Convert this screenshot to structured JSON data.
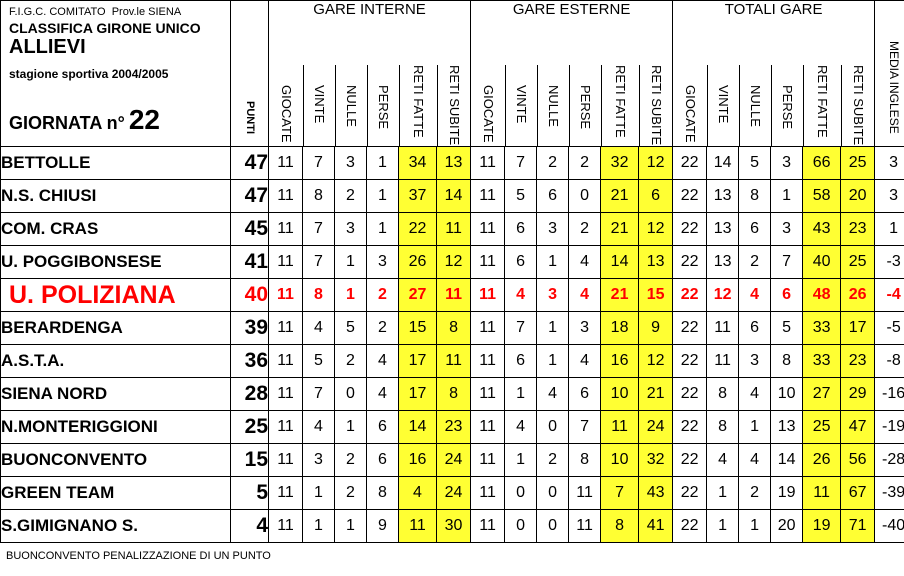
{
  "header": {
    "org": "F.I.G.C. COMITATO",
    "province": "Prov.le SIENA",
    "classifica": "CLASSIFICA GIRONE UNICO",
    "category": "ALLIEVI",
    "season": "stagione sportiva 2004/2005",
    "giornata_label": "GIORNATA n°",
    "giornata_number": "22"
  },
  "columns": {
    "punti": "PUNTI",
    "gare_interne": "GARE INTERNE",
    "gare_esterne": "GARE ESTERNE",
    "totali_gare": "TOTALI GARE",
    "media_inglese": "MEDIA INGLESE",
    "sub": [
      "GIOCATE",
      "VINTE",
      "NULLE",
      "PERSE",
      "RETI FATTE",
      "RETI SUBITE"
    ]
  },
  "teams": [
    {
      "name": "BETTOLLE",
      "punti": "47",
      "interne": [
        "11",
        "7",
        "3",
        "1",
        "34",
        "13"
      ],
      "esterne": [
        "11",
        "7",
        "2",
        "2",
        "32",
        "12"
      ],
      "totali": [
        "22",
        "14",
        "5",
        "3",
        "66",
        "25"
      ],
      "media": "3"
    },
    {
      "name": "N.S. CHIUSI",
      "punti": "47",
      "interne": [
        "11",
        "8",
        "2",
        "1",
        "37",
        "14"
      ],
      "esterne": [
        "11",
        "5",
        "6",
        "0",
        "21",
        "6"
      ],
      "totali": [
        "22",
        "13",
        "8",
        "1",
        "58",
        "20"
      ],
      "media": "3"
    },
    {
      "name": "COM. CRAS",
      "punti": "45",
      "interne": [
        "11",
        "7",
        "3",
        "1",
        "22",
        "11"
      ],
      "esterne": [
        "11",
        "6",
        "3",
        "2",
        "21",
        "12"
      ],
      "totali": [
        "22",
        "13",
        "6",
        "3",
        "43",
        "23"
      ],
      "media": "1"
    },
    {
      "name": "U. POGGIBONSESE",
      "punti": "41",
      "interne": [
        "11",
        "7",
        "1",
        "3",
        "26",
        "12"
      ],
      "esterne": [
        "11",
        "6",
        "1",
        "4",
        "14",
        "13"
      ],
      "totali": [
        "22",
        "13",
        "2",
        "7",
        "40",
        "25"
      ],
      "media": "-3"
    },
    {
      "name": "U. POLIZIANA",
      "punti": "40",
      "interne": [
        "11",
        "8",
        "1",
        "2",
        "27",
        "11"
      ],
      "esterne": [
        "11",
        "4",
        "3",
        "4",
        "21",
        "15"
      ],
      "totali": [
        "22",
        "12",
        "4",
        "6",
        "48",
        "26"
      ],
      "media": "-4",
      "highlight": true
    },
    {
      "name": "BERARDENGA",
      "punti": "39",
      "interne": [
        "11",
        "4",
        "5",
        "2",
        "15",
        "8"
      ],
      "esterne": [
        "11",
        "7",
        "1",
        "3",
        "18",
        "9"
      ],
      "totali": [
        "22",
        "11",
        "6",
        "5",
        "33",
        "17"
      ],
      "media": "-5"
    },
    {
      "name": "A.S.T.A.",
      "punti": "36",
      "interne": [
        "11",
        "5",
        "2",
        "4",
        "17",
        "11"
      ],
      "esterne": [
        "11",
        "6",
        "1",
        "4",
        "16",
        "12"
      ],
      "totali": [
        "22",
        "11",
        "3",
        "8",
        "33",
        "23"
      ],
      "media": "-8"
    },
    {
      "name": "SIENA NORD",
      "punti": "28",
      "interne": [
        "11",
        "7",
        "0",
        "4",
        "17",
        "8"
      ],
      "esterne": [
        "11",
        "1",
        "4",
        "6",
        "10",
        "21"
      ],
      "totali": [
        "22",
        "8",
        "4",
        "10",
        "27",
        "29"
      ],
      "media": "-16"
    },
    {
      "name": "N.MONTERIGGIONI",
      "punti": "25",
      "interne": [
        "11",
        "4",
        "1",
        "6",
        "14",
        "23"
      ],
      "esterne": [
        "11",
        "4",
        "0",
        "7",
        "11",
        "24"
      ],
      "totali": [
        "22",
        "8",
        "1",
        "13",
        "25",
        "47"
      ],
      "media": "-19"
    },
    {
      "name": "BUONCONVENTO",
      "punti": "15",
      "interne": [
        "11",
        "3",
        "2",
        "6",
        "16",
        "24"
      ],
      "esterne": [
        "11",
        "1",
        "2",
        "8",
        "10",
        "32"
      ],
      "totali": [
        "22",
        "4",
        "4",
        "14",
        "26",
        "56"
      ],
      "media": "-28"
    },
    {
      "name": "GREEN TEAM",
      "punti": "5",
      "interne": [
        "11",
        "1",
        "2",
        "8",
        "4",
        "24"
      ],
      "esterne": [
        "11",
        "0",
        "0",
        "11",
        "7",
        "43"
      ],
      "totali": [
        "22",
        "1",
        "2",
        "19",
        "11",
        "67"
      ],
      "media": "-39"
    },
    {
      "name": "S.GIMIGNANO S.",
      "punti": "4",
      "interne": [
        "11",
        "1",
        "1",
        "9",
        "11",
        "30"
      ],
      "esterne": [
        "11",
        "0",
        "0",
        "11",
        "8",
        "41"
      ],
      "totali": [
        "22",
        "1",
        "1",
        "20",
        "19",
        "71"
      ],
      "media": "-40"
    }
  ],
  "footnote": "BUONCONVENTO  PENALIZZAZIONE  DI UN PUNTO",
  "colors": {
    "yellow": "#ffff33",
    "highlight": "#ff0000"
  }
}
